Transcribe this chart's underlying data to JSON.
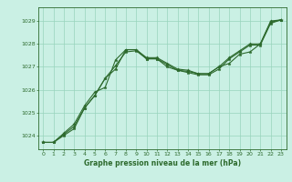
{
  "title": "Graphe pression niveau de la mer (hPa)",
  "bg_color": "#caf0e4",
  "grid_color": "#98d4bc",
  "line_color": "#2d6a2d",
  "xlim": [
    -0.5,
    23.5
  ],
  "ylim": [
    1023.4,
    1029.6
  ],
  "yticks": [
    1024,
    1025,
    1026,
    1027,
    1028,
    1029
  ],
  "xticks": [
    0,
    1,
    2,
    3,
    4,
    5,
    6,
    7,
    8,
    9,
    10,
    11,
    12,
    13,
    14,
    15,
    16,
    17,
    18,
    19,
    20,
    21,
    22,
    23
  ],
  "series1_x": [
    0,
    1,
    2,
    3,
    4,
    5,
    6,
    7,
    8,
    9,
    10,
    11,
    12,
    13,
    14,
    15,
    16,
    17,
    18,
    19,
    20,
    21,
    22,
    23
  ],
  "series1_y": [
    1023.7,
    1023.7,
    1024.1,
    1024.5,
    1025.3,
    1025.9,
    1026.1,
    1027.3,
    1027.75,
    1027.75,
    1027.4,
    1027.4,
    1027.15,
    1026.9,
    1026.85,
    1026.7,
    1026.7,
    1027.0,
    1027.15,
    1027.55,
    1027.65,
    1028.0,
    1029.0,
    1029.05
  ],
  "series2_x": [
    0,
    1,
    2,
    3,
    4,
    5,
    6,
    7,
    8,
    9,
    10,
    11,
    12,
    13,
    14,
    15,
    16,
    17,
    18,
    19,
    20,
    21,
    22,
    23
  ],
  "series2_y": [
    1023.7,
    1023.7,
    1024.05,
    1024.4,
    1025.2,
    1025.75,
    1026.5,
    1027.05,
    1027.65,
    1027.7,
    1027.35,
    1027.35,
    1027.1,
    1026.85,
    1026.8,
    1026.7,
    1026.7,
    1027.0,
    1027.4,
    1027.7,
    1028.0,
    1028.0,
    1028.95,
    1029.05
  ],
  "series3_x": [
    0,
    1,
    2,
    3,
    4,
    5,
    6,
    7,
    8,
    9,
    10,
    11,
    12,
    13,
    14,
    15,
    16,
    17,
    18,
    19,
    20,
    21,
    22,
    23
  ],
  "series3_y": [
    1023.7,
    1023.7,
    1024.0,
    1024.3,
    1025.2,
    1025.75,
    1026.5,
    1026.9,
    1027.75,
    1027.75,
    1027.35,
    1027.35,
    1027.0,
    1026.85,
    1026.75,
    1026.65,
    1026.65,
    1026.9,
    1027.35,
    1027.65,
    1027.95,
    1027.95,
    1028.9,
    1029.05
  ],
  "title_fontsize": 5.5,
  "tick_fontsize": 4.5,
  "marker_size": 2.5,
  "line_width": 0.8
}
